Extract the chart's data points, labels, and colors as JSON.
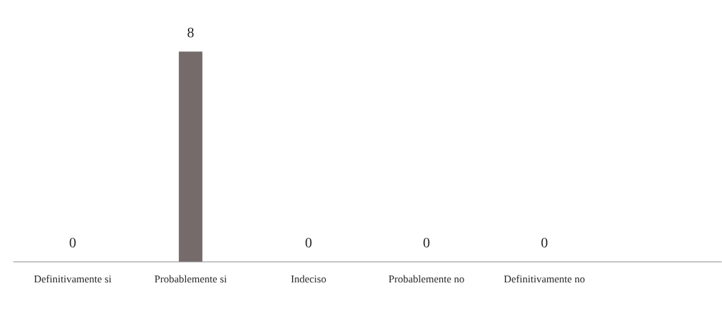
{
  "chart_data": {
    "type": "bar",
    "categories": [
      "Definitivamente si",
      "Probablemente si",
      "Indeciso",
      "Probablemente no",
      "Definitivamente no"
    ],
    "values": [
      0,
      8,
      0,
      0,
      0
    ],
    "color": "#766b6b",
    "data_labels": true,
    "grid": false,
    "legend": false
  }
}
